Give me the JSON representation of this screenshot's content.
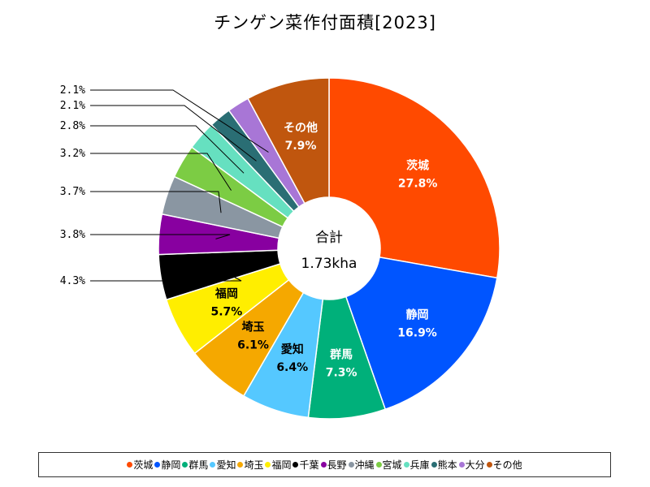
{
  "chart_data": {
    "type": "pie",
    "donut": true,
    "title": "チンゲン菜作付面積[2023]",
    "center_label": "合計",
    "center_value": "1.73kha",
    "slices": [
      {
        "name": "茨城",
        "value": 27.8,
        "label": "27.8%",
        "color": "#ff4a00",
        "label_mode": "inside",
        "text_color": "#ffffff"
      },
      {
        "name": "静岡",
        "value": 16.9,
        "label": "16.9%",
        "color": "#0055ff",
        "label_mode": "inside",
        "text_color": "#ffffff"
      },
      {
        "name": "群馬",
        "value": 7.3,
        "label": "7.3%",
        "color": "#00b07a",
        "label_mode": "inside",
        "text_color": "#ffffff"
      },
      {
        "name": "愛知",
        "value": 6.4,
        "label": "6.4%",
        "color": "#55c8ff",
        "label_mode": "inside",
        "text_color": "#000000"
      },
      {
        "name": "埼玉",
        "value": 6.1,
        "label": "6.1%",
        "color": "#f5a800",
        "label_mode": "inside",
        "text_color": "#000000"
      },
      {
        "name": "福岡",
        "value": 5.7,
        "label": "5.7%",
        "color": "#ffee00",
        "label_mode": "inside",
        "text_color": "#000000"
      },
      {
        "name": "千葉",
        "value": 4.3,
        "label": "4.3%",
        "color": "#000000",
        "label_mode": "outside"
      },
      {
        "name": "長野",
        "value": 3.8,
        "label": "3.8%",
        "color": "#8800a0",
        "label_mode": "outside"
      },
      {
        "name": "沖縄",
        "value": 3.7,
        "label": "3.7%",
        "color": "#8a96a2",
        "label_mode": "outside"
      },
      {
        "name": "宮城",
        "value": 3.2,
        "label": "3.2%",
        "color": "#7ccc44",
        "label_mode": "outside"
      },
      {
        "name": "兵庫",
        "value": 2.8,
        "label": "2.8%",
        "color": "#66e0c0",
        "label_mode": "outside"
      },
      {
        "name": "熊本",
        "value": 2.1,
        "label": "2.1%",
        "color": "#2a6e74",
        "label_mode": "outside"
      },
      {
        "name": "大分",
        "value": 2.1,
        "label": "2.1%",
        "color": "#a876d6",
        "label_mode": "outside"
      },
      {
        "name": "その他",
        "value": 7.9,
        "label": "7.9%",
        "color": "#c0560e",
        "label_mode": "inside",
        "text_color": "#ffffff"
      }
    ],
    "legend_position": "bottom"
  }
}
